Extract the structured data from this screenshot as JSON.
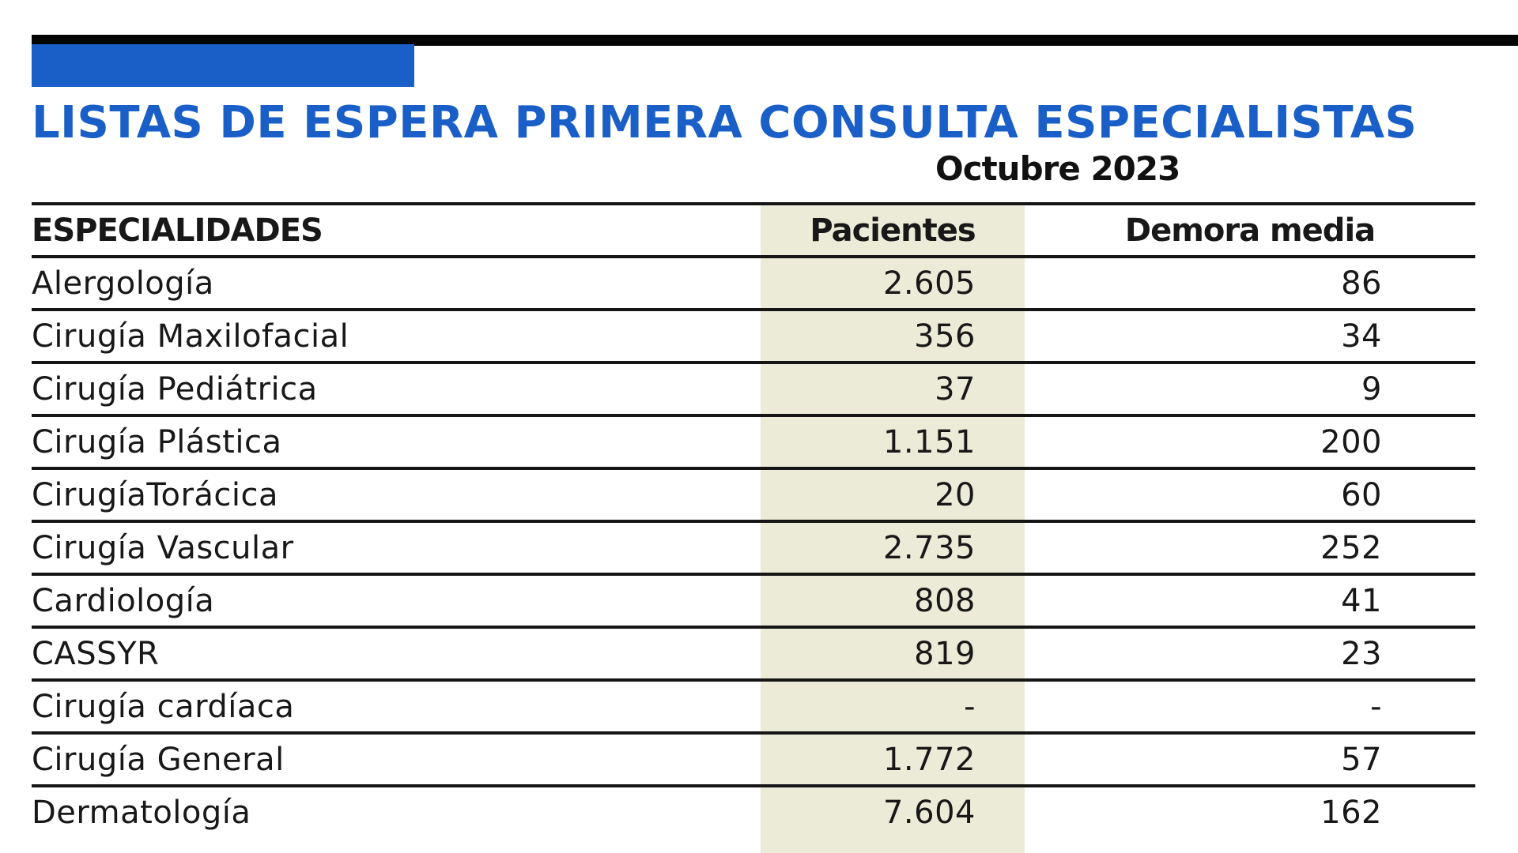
{
  "chart_data": {
    "type": "table",
    "title": "LISTAS DE ESPERA PRIMERA CONSULTA ESPECIALISTAS",
    "subtitle": "Octubre 2023",
    "columns": [
      "ESPECIALIDADES",
      "Pacientes",
      "Demora media"
    ],
    "rows": [
      {
        "especialidad": "Alergología",
        "pacientes": "2.605",
        "demora": "86"
      },
      {
        "especialidad": "Cirugía Maxilofacial",
        "pacientes": "356",
        "demora": "34"
      },
      {
        "especialidad": "Cirugía Pediátrica",
        "pacientes": "37",
        "demora": "9"
      },
      {
        "especialidad": "Cirugía Plástica",
        "pacientes": "1.151",
        "demora": "200"
      },
      {
        "especialidad": "CirugíaTorácica",
        "pacientes": "20",
        "demora": "60"
      },
      {
        "especialidad": "Cirugía Vascular",
        "pacientes": "2.735",
        "demora": "252"
      },
      {
        "especialidad": "Cardiología",
        "pacientes": "808",
        "demora": "41"
      },
      {
        "especialidad": "CASSYR",
        "pacientes": "819",
        "demora": "23"
      },
      {
        "especialidad": "Cirugía cardíaca",
        "pacientes": "-",
        "demora": "-"
      },
      {
        "especialidad": "Cirugía General",
        "pacientes": "1.772",
        "demora": "57"
      },
      {
        "especialidad": "Dermatología",
        "pacientes": "7.604",
        "demora": "162"
      }
    ]
  },
  "colors": {
    "accent_blue": "#1a5fc7",
    "shade": "#ecebd8",
    "rule": "#151515"
  }
}
